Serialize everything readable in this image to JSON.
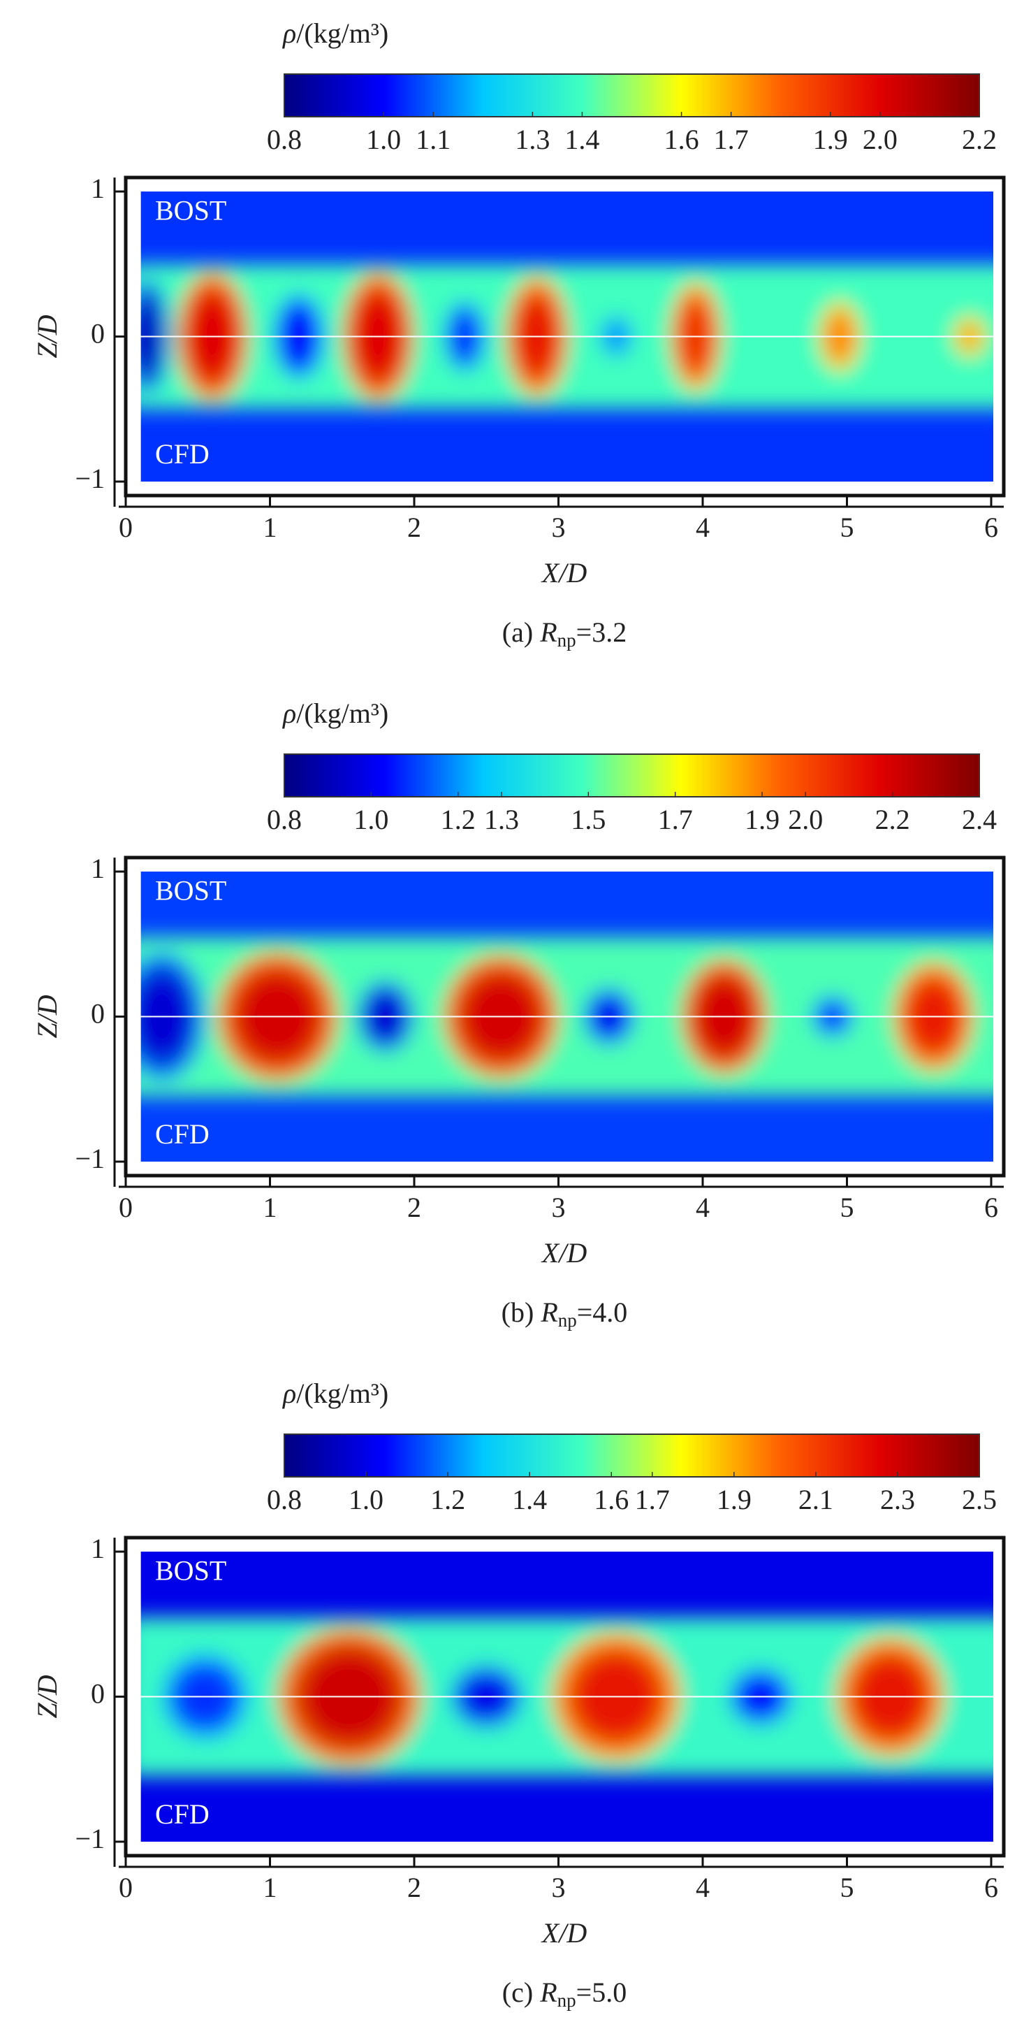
{
  "chart_data": [
    {
      "type": "field",
      "caption": {
        "label": "(a)",
        "symbol": "R",
        "subscript": "np",
        "value_text": "=3.2"
      },
      "colorbar": {
        "symbol": "ρ",
        "unit": "/(kg/m³)",
        "clim": [
          0.8,
          2.2
        ],
        "ticks": [
          0.8,
          {
            "value": 1.0,
            "label": "1.0"
          },
          1.1,
          1.3,
          1.4,
          1.6,
          1.7,
          1.9,
          {
            "value": 2.0,
            "label": "2.0"
          },
          2.2
        ]
      },
      "colormap": [
        "#000080",
        "#0000ff",
        "#00c8ff",
        "#40ffc0",
        "#ffff00",
        "#ff6000",
        "#e00000",
        "#800000"
      ],
      "x_label": "X/D",
      "y_label": "Z/D",
      "annotations": [
        "BOST",
        "CFD"
      ],
      "xlim": [
        0,
        6
      ],
      "xticks": [
        0,
        1,
        2,
        3,
        4,
        5,
        6
      ],
      "ylim": [
        -1,
        1
      ],
      "yticks": [
        {
          "value": -1,
          "label": "−1"
        },
        0,
        1
      ],
      "ambient": 1.05,
      "jet": 1.4,
      "jet_half_width": 0.5,
      "cells": [
        {
          "x": 0.15,
          "half_width": 0.15,
          "half_height": 0.4,
          "rho": 0.9
        },
        {
          "x": 0.6,
          "half_width": 0.25,
          "half_height": 0.45,
          "rho": 2.0
        },
        {
          "x": 1.2,
          "half_width": 0.18,
          "half_height": 0.3,
          "rho": 1.0
        },
        {
          "x": 1.75,
          "half_width": 0.25,
          "half_height": 0.45,
          "rho": 2.0
        },
        {
          "x": 2.35,
          "half_width": 0.15,
          "half_height": 0.25,
          "rho": 1.05
        },
        {
          "x": 2.85,
          "half_width": 0.22,
          "half_height": 0.42,
          "rho": 1.95
        },
        {
          "x": 3.4,
          "half_width": 0.12,
          "half_height": 0.15,
          "rho": 1.15
        },
        {
          "x": 3.95,
          "half_width": 0.18,
          "half_height": 0.38,
          "rho": 1.9
        },
        {
          "x": 4.95,
          "half_width": 0.15,
          "half_height": 0.25,
          "rho": 1.75
        },
        {
          "x": 5.85,
          "half_width": 0.12,
          "half_height": 0.15,
          "rho": 1.7
        }
      ]
    },
    {
      "type": "field",
      "caption": {
        "label": "(b)",
        "symbol": "R",
        "subscript": "np",
        "value_text": "=4.0"
      },
      "colorbar": {
        "symbol": "ρ",
        "unit": "/(kg/m³)",
        "clim": [
          0.8,
          2.4
        ],
        "ticks": [
          0.8,
          {
            "value": 1.0,
            "label": "1.0"
          },
          1.2,
          1.3,
          1.5,
          1.7,
          1.9,
          {
            "value": 2.0,
            "label": "2.0"
          },
          2.2,
          2.4
        ]
      },
      "colormap": [
        "#000080",
        "#0000ff",
        "#00c8ff",
        "#40ffc0",
        "#ffff00",
        "#ff6000",
        "#e00000",
        "#800000"
      ],
      "x_label": "X/D",
      "y_label": "Z/D",
      "annotations": [
        "BOST",
        "CFD"
      ],
      "xlim": [
        0,
        6
      ],
      "xticks": [
        0,
        1,
        2,
        3,
        4,
        5,
        6
      ],
      "ylim": [
        -1,
        1
      ],
      "yticks": [
        {
          "value": -1,
          "label": "−1"
        },
        0,
        1
      ],
      "ambient": 1.1,
      "jet": 1.5,
      "jet_half_width": 0.55,
      "cells": [
        {
          "x": 0.25,
          "half_width": 0.3,
          "half_height": 0.45,
          "rho": 0.95
        },
        {
          "x": 1.05,
          "half_width": 0.42,
          "half_height": 0.45,
          "rho": 2.2
        },
        {
          "x": 1.8,
          "half_width": 0.2,
          "half_height": 0.25,
          "rho": 0.95
        },
        {
          "x": 2.6,
          "half_width": 0.4,
          "half_height": 0.43,
          "rho": 2.2
        },
        {
          "x": 3.35,
          "half_width": 0.18,
          "half_height": 0.2,
          "rho": 1.0
        },
        {
          "x": 4.15,
          "half_width": 0.3,
          "half_height": 0.4,
          "rho": 2.2
        },
        {
          "x": 4.9,
          "half_width": 0.15,
          "half_height": 0.15,
          "rho": 1.1
        },
        {
          "x": 5.6,
          "half_width": 0.28,
          "half_height": 0.38,
          "rho": 2.1
        }
      ]
    },
    {
      "type": "field",
      "caption": {
        "label": "(c)",
        "symbol": "R",
        "subscript": "np",
        "value_text": "=5.0"
      },
      "colorbar": {
        "symbol": "ρ",
        "unit": "/(kg/m³)",
        "clim": [
          0.8,
          2.5
        ],
        "ticks": [
          0.8,
          {
            "value": 1.0,
            "label": "1.0"
          },
          1.2,
          1.4,
          1.6,
          1.7,
          1.9,
          2.1,
          2.3,
          2.5
        ]
      },
      "colormap": [
        "#000080",
        "#0000ff",
        "#00c8ff",
        "#40ffc0",
        "#ffff00",
        "#ff6000",
        "#e00000",
        "#800000"
      ],
      "x_label": "X/D",
      "y_label": "Z/D",
      "annotations": [
        "BOST",
        "CFD"
      ],
      "xlim": [
        0,
        6
      ],
      "xticks": [
        0,
        1,
        2,
        3,
        4,
        5,
        6
      ],
      "ylim": [
        -1,
        1
      ],
      "yticks": [
        {
          "value": -1,
          "label": "−1"
        },
        0,
        1
      ],
      "ambient": 1.0,
      "jet": 1.5,
      "jet_half_width": 0.55,
      "cells": [
        {
          "x": 0.55,
          "half_width": 0.3,
          "half_height": 0.3,
          "rho": 1.1
        },
        {
          "x": 1.55,
          "half_width": 0.5,
          "half_height": 0.48,
          "rho": 2.3
        },
        {
          "x": 2.5,
          "half_width": 0.25,
          "half_height": 0.22,
          "rho": 1.0
        },
        {
          "x": 3.4,
          "half_width": 0.45,
          "half_height": 0.45,
          "rho": 2.2
        },
        {
          "x": 4.4,
          "half_width": 0.22,
          "half_height": 0.2,
          "rho": 1.05
        },
        {
          "x": 5.3,
          "half_width": 0.38,
          "half_height": 0.42,
          "rho": 2.2
        }
      ]
    }
  ]
}
